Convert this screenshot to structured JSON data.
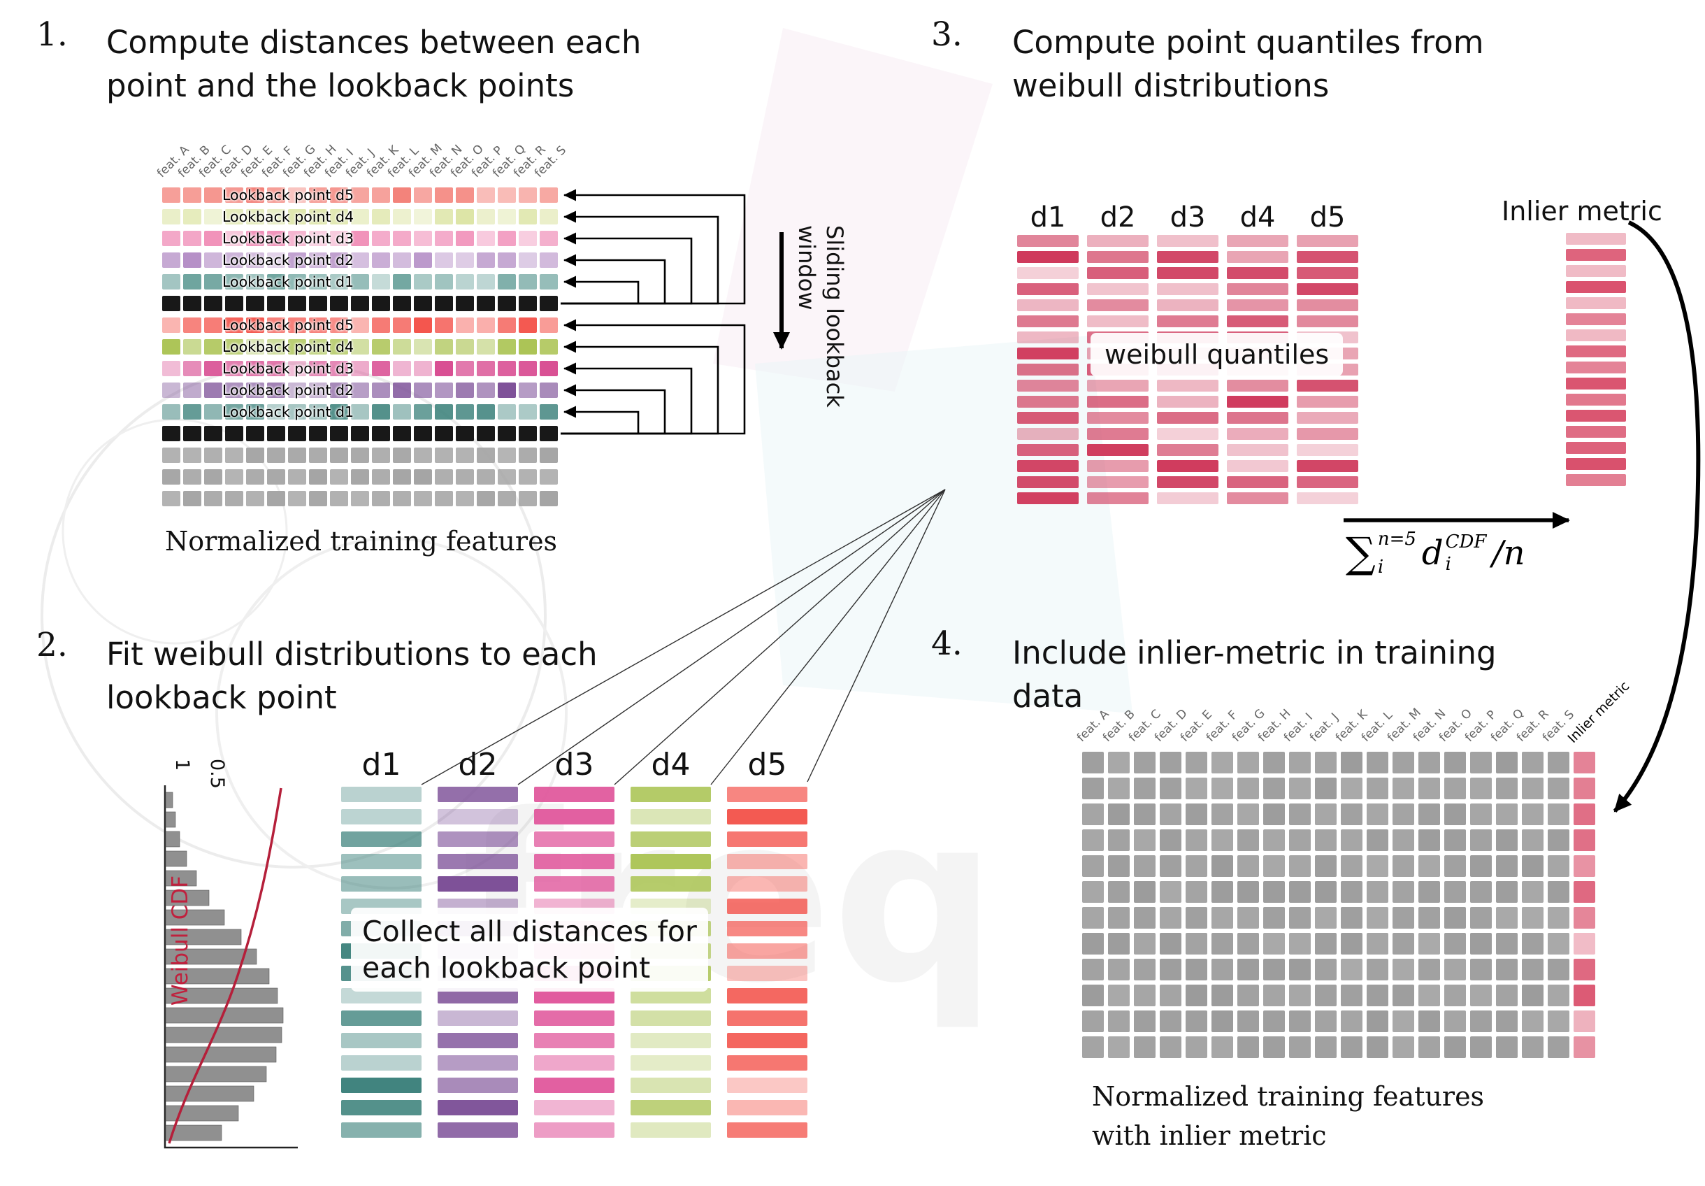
{
  "watermark": {
    "text": "freq"
  },
  "step1": {
    "number": "1.",
    "title": [
      "Compute distances between each",
      "point and the lookback points"
    ],
    "caption": "Normalized training features",
    "sliding_label": [
      "Sliding lookback",
      "window"
    ],
    "columns": [
      "feat. A",
      "feat. B",
      "feat. C",
      "feat. D",
      "feat. E",
      "feat. F",
      "feat. G",
      "feat. H",
      "feat. I",
      "feat. J",
      "feat. K",
      "feat. L",
      "feat. M",
      "feat. N",
      "feat. O",
      "feat. P",
      "feat. Q",
      "feat. R",
      "feat. S"
    ],
    "rows": [
      {
        "color": "#f2766d",
        "label": "Lookback point d5",
        "variant": "colored"
      },
      {
        "color": "#dde5a6",
        "label": "Lookback point d4",
        "variant": "colored"
      },
      {
        "color": "#ef87b3",
        "label": "Lookback point d3",
        "variant": "colored"
      },
      {
        "color": "#b58fc6",
        "label": "Lookback point d2",
        "variant": "colored"
      },
      {
        "color": "#69a19b",
        "label": "Lookback point d1",
        "variant": "colored"
      },
      {
        "color": "#181818",
        "label": "",
        "variant": "solid"
      },
      {
        "color": "#f4564e",
        "label": "Lookback point d5",
        "variant": "colored"
      },
      {
        "color": "#a9c24f",
        "label": "Lookback point d4",
        "variant": "colored"
      },
      {
        "color": "#d94f93",
        "label": "Lookback point d3",
        "variant": "colored"
      },
      {
        "color": "#7c4f97",
        "label": "Lookback point d2",
        "variant": "colored"
      },
      {
        "color": "#3f837d",
        "label": "Lookback point d1",
        "variant": "colored"
      },
      {
        "color": "#181818",
        "label": "",
        "variant": "solid"
      },
      {
        "color": "#a5a5a5",
        "label": "",
        "variant": "gray"
      },
      {
        "color": "#a5a5a5",
        "label": "",
        "variant": "gray"
      },
      {
        "color": "#a5a5a5",
        "label": "",
        "variant": "gray"
      }
    ]
  },
  "step2": {
    "number": "2.",
    "title": [
      "Fit weibull distributions to each",
      "lookback point"
    ],
    "overlay": [
      "Collect all distances for",
      "each lookback point"
    ],
    "plot": {
      "ylabel": "Weibull CDF",
      "ticks": [
        "1",
        "0.5"
      ],
      "bar_lengths": [
        10,
        14,
        20,
        30,
        44,
        62,
        84,
        108,
        130,
        148,
        160,
        168,
        166,
        158,
        144,
        126,
        104,
        80
      ]
    },
    "stacks": [
      {
        "label": "d1",
        "color": "#3f837d"
      },
      {
        "label": "d2",
        "color": "#7c4f97"
      },
      {
        "label": "d3",
        "color": "#e0569b"
      },
      {
        "label": "d4",
        "color": "#a8c24f"
      },
      {
        "label": "d5",
        "color": "#f3534b"
      }
    ],
    "bars_per_stack": 16
  },
  "step3": {
    "number": "3.",
    "title": [
      "Compute point quantiles from",
      "weibull distributions"
    ],
    "column_labels": [
      "d1",
      "d2",
      "d3",
      "d4",
      "d5"
    ],
    "bar_color": "#cf3a5c",
    "bars_per_column": 17,
    "overlay": "weibull quantiles",
    "inlier_label": "Inlier metric",
    "inlier_bars": 16,
    "inlier_color": "#d94f6b",
    "formula": {
      "sum": "∑",
      "sum_sup": "n=5",
      "sum_sub": "i",
      "var": "d",
      "var_sup": "CDF",
      "var_sub": "i",
      "divisor": "/n"
    }
  },
  "step4": {
    "number": "4.",
    "title": [
      "Include inlier-metric in training",
      "data"
    ],
    "caption": [
      "Normalized training features",
      "with inlier metric"
    ],
    "columns": [
      "feat. A",
      "feat. B",
      "feat. C",
      "feat. D",
      "feat. E",
      "feat. F",
      "feat. G",
      "feat. H",
      "feat. I",
      "feat. J",
      "feat. K",
      "feat. L",
      "feat. M",
      "feat. N",
      "feat. O",
      "feat. P",
      "feat. Q",
      "feat. R",
      "feat. S"
    ],
    "inlier_column_label": "Inlier metric",
    "rows": 12,
    "cell_color": "#9b9b9b",
    "inlier_color": "#d94f6b"
  }
}
